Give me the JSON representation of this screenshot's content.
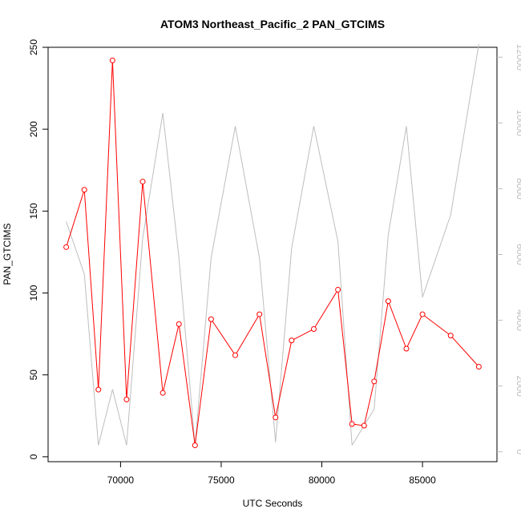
{
  "chart_data": {
    "type": "line",
    "title": "ATOM3 Northeast_Pacific_2 PAN_GTCIMS",
    "xlabel": "UTC Seconds",
    "ylabel": "PAN_GTCIMS",
    "xlim": [
      66400,
      88700
    ],
    "ylim": [
      -3,
      250
    ],
    "y2lim": [
      -300,
      12300
    ],
    "x_ticks": [
      70000,
      75000,
      80000,
      85000
    ],
    "y_ticks": [
      0,
      50,
      100,
      150,
      200,
      250
    ],
    "y2_ticks": [
      0,
      2000,
      4000,
      6000,
      8000,
      10000,
      12000
    ],
    "colors": {
      "primary": "#ff0000",
      "secondary": "#bebebe"
    },
    "series": [
      {
        "axis": "left",
        "color": "#ff0000",
        "markers": "open-circle",
        "x": [
          67300,
          68200,
          68900,
          69600,
          70300,
          71100,
          72100,
          72900,
          73700,
          74500,
          75700,
          76900,
          77700,
          78500,
          79600,
          80800,
          81500,
          82100,
          82600,
          83300,
          84200,
          85000,
          86400,
          87800
        ],
        "y": [
          128,
          163,
          41,
          242,
          35,
          168,
          39,
          81,
          7,
          84,
          62,
          87,
          24,
          71,
          78,
          102,
          20,
          19,
          46,
          95,
          66,
          87,
          74,
          55
        ]
      },
      {
        "axis": "right",
        "color": "#bebebe",
        "markers": "none",
        "x": [
          67300,
          68200,
          68900,
          69600,
          70300,
          71100,
          72100,
          72900,
          73700,
          74500,
          75700,
          76900,
          77700,
          78500,
          79600,
          80800,
          81500,
          82100,
          82600,
          83300,
          84200,
          85000,
          86400,
          87800
        ],
        "y": [
          7000,
          5400,
          200,
          1900,
          200,
          6500,
          10300,
          5900,
          200,
          5900,
          9900,
          5900,
          300,
          6200,
          9900,
          6400,
          200,
          800,
          1300,
          6600,
          9900,
          4700,
          7200,
          12400
        ]
      }
    ]
  }
}
